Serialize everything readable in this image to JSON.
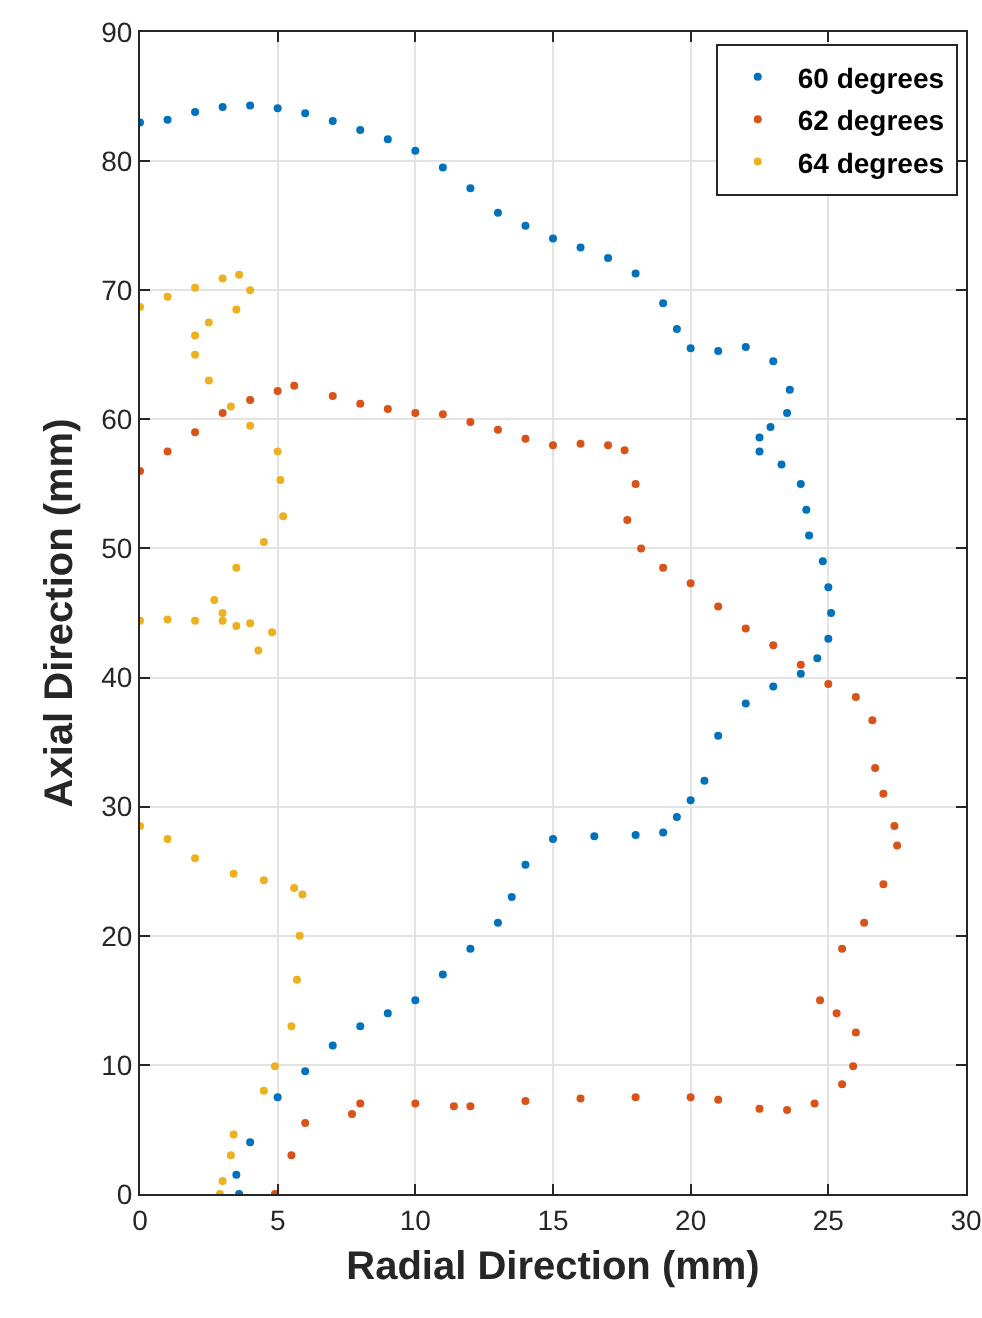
{
  "chart_data": {
    "type": "scatter",
    "xlabel": "Radial Direction (mm)",
    "ylabel": "Axial Direction (mm)",
    "xlim": [
      0,
      30
    ],
    "xticks": [
      0,
      5,
      10,
      15,
      20,
      25,
      30
    ],
    "ylim": [
      0,
      90
    ],
    "yticks": [
      0,
      10,
      20,
      30,
      40,
      50,
      60,
      70,
      80,
      90
    ],
    "grid": true,
    "legend": "top right",
    "marker": "circle",
    "series": [
      {
        "name": "60 degrees",
        "color": "#0072bd",
        "x": [
          0,
          1,
          2,
          3,
          4,
          5,
          6,
          7,
          8,
          9,
          10,
          11,
          12,
          13,
          14,
          15,
          16,
          17,
          18,
          19,
          19.5,
          20,
          21,
          22,
          23,
          23.6,
          23.5,
          22.9,
          22.5,
          22.5,
          23.3,
          24,
          24.2,
          24.3,
          24.8,
          25,
          25.1,
          25,
          24.6,
          24,
          23,
          22,
          21,
          20.5,
          20,
          19.5,
          19,
          18,
          16.5,
          15,
          14,
          13.5,
          13,
          12,
          11,
          10,
          9,
          8,
          7,
          6,
          5,
          4,
          3.5,
          3.6
        ],
        "values": [
          83,
          83.2,
          83.8,
          84.2,
          84.3,
          84.1,
          83.7,
          83.1,
          82.4,
          81.7,
          80.8,
          79.5,
          77.9,
          76,
          75,
          74,
          73.3,
          72.5,
          71.3,
          69,
          67,
          65.5,
          65.3,
          65.6,
          64.5,
          62.3,
          60.5,
          59.4,
          58.6,
          57.5,
          56.5,
          55,
          53,
          51,
          49,
          47,
          45,
          43,
          41.5,
          40.3,
          39.3,
          38,
          35.5,
          32,
          30.5,
          29.2,
          28,
          27.8,
          27.7,
          27.5,
          25.5,
          23,
          21,
          19,
          17,
          15,
          14,
          13,
          11.5,
          9.5,
          7.5,
          4,
          1.5,
          0
        ]
      },
      {
        "name": "62 degrees",
        "color": "#d95319",
        "x": [
          0,
          1,
          2,
          3,
          4,
          5,
          5.6,
          7,
          8,
          9,
          10,
          11,
          12,
          13,
          14,
          15,
          16,
          17,
          17.6,
          18,
          17.7,
          18.2,
          19,
          20,
          21,
          22,
          23,
          24,
          25,
          26,
          26.6,
          26.7,
          27,
          27.4,
          27.5,
          27,
          26.3,
          25.5,
          24.7,
          25.3,
          26,
          25.9,
          25.5,
          24.5,
          23.5,
          22.5,
          21,
          20,
          18,
          16,
          14,
          12,
          11.4,
          10,
          8,
          7.7,
          6,
          5.5,
          4.9
        ],
        "values": [
          56,
          57.5,
          59,
          60.5,
          61.5,
          62.2,
          62.6,
          61.8,
          61.2,
          60.8,
          60.5,
          60.4,
          59.8,
          59.2,
          58.5,
          58,
          58.1,
          58,
          57.6,
          55,
          52.2,
          50,
          48.5,
          47.3,
          45.5,
          43.8,
          42.5,
          41,
          39.5,
          38.5,
          36.7,
          33,
          31,
          28.5,
          27,
          24,
          21,
          19,
          15,
          14,
          12.5,
          9.9,
          8.5,
          7,
          6.5,
          6.6,
          7.3,
          7.5,
          7.5,
          7.4,
          7.2,
          6.8,
          6.8,
          7,
          7,
          6.2,
          5.5,
          3,
          0
        ]
      },
      {
        "name": "64 degrees",
        "color": "#edb120",
        "x": [
          0,
          1,
          2,
          3,
          3.6,
          4,
          3.5,
          2.5,
          2,
          2,
          2.5,
          3.3,
          4,
          5,
          5.1,
          5.2,
          4.5,
          3.5,
          2.7,
          3,
          3.5,
          4.3,
          4.8,
          4,
          3,
          2,
          1,
          0,
          null,
          0,
          1,
          2,
          3.4,
          4.5,
          5.6,
          5.9,
          5.8,
          5.7,
          5.5,
          4.9,
          4.5,
          3.4,
          3.3,
          3,
          2.9
        ],
        "values": [
          68.7,
          69.5,
          70.2,
          70.9,
          71.2,
          70,
          68.5,
          67.5,
          66.5,
          65,
          63,
          61,
          59.5,
          57.5,
          55.3,
          52.5,
          50.5,
          48.5,
          46,
          45,
          44,
          42.1,
          43.5,
          44.2,
          44.4,
          44.4,
          44.5,
          44.4,
          null,
          28.5,
          27.5,
          26,
          24.8,
          24.3,
          23.7,
          23.2,
          20,
          16.6,
          13,
          9.9,
          8,
          4.6,
          3,
          1,
          0
        ]
      }
    ]
  }
}
